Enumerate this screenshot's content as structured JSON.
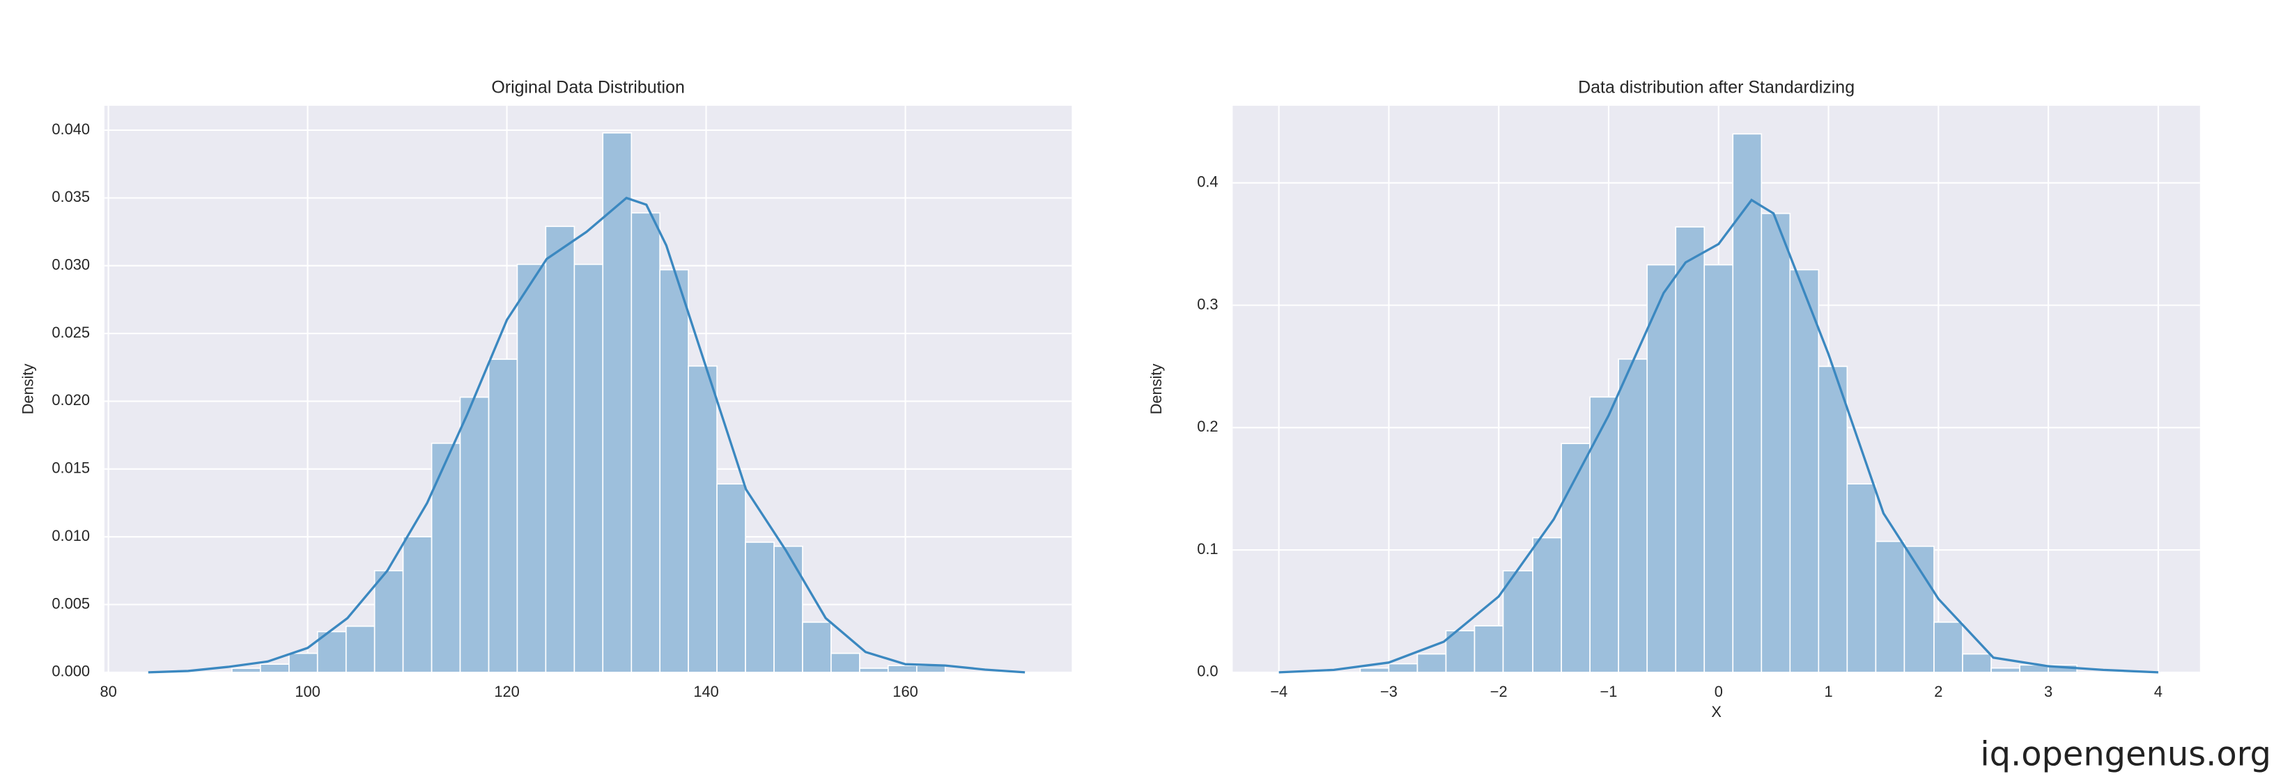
{
  "chart_data": [
    {
      "type": "histogram",
      "title": "Original Data Distribution",
      "ylabel": "Density",
      "bins": [
        92.4,
        95.26,
        98.13,
        100.99,
        103.86,
        106.72,
        109.58,
        112.45,
        115.31,
        118.18,
        121.04,
        123.9,
        126.77,
        129.63,
        132.5,
        135.36,
        138.22,
        141.09,
        143.95,
        146.82,
        149.68,
        152.54,
        155.41,
        158.27,
        161.14,
        164.0
      ],
      "values": [
        0.0003,
        0.0006,
        0.0014,
        0.003,
        0.0034,
        0.0075,
        0.01,
        0.0169,
        0.0203,
        0.0231,
        0.0301,
        0.0329,
        0.0301,
        0.0398,
        0.0339,
        0.0297,
        0.0226,
        0.0139,
        0.0096,
        0.0093,
        0.0037,
        0.0014,
        0.0003,
        0.0005,
        0.0005
      ],
      "color": "#9dbfdc",
      "kde": {
        "color": "#3b88c0",
        "x": [
          84,
          88,
          92,
          96,
          100,
          104,
          108,
          112,
          116,
          120,
          124,
          128,
          132,
          134,
          136,
          140,
          144,
          148,
          152,
          156,
          160,
          164,
          168,
          172
        ],
        "values": [
          0,
          0.0001,
          0.0004,
          0.0008,
          0.0018,
          0.004,
          0.0075,
          0.0125,
          0.019,
          0.026,
          0.0305,
          0.0325,
          0.035,
          0.0345,
          0.0315,
          0.0225,
          0.0135,
          0.009,
          0.004,
          0.0015,
          0.0006,
          0.0005,
          0.0002,
          0
        ]
      },
      "xlim": [
        79.6,
        176.7
      ],
      "ylim": [
        0,
        0.0418
      ],
      "xticks": [
        80,
        100,
        120,
        140,
        160
      ],
      "yticks": [
        {
          "value": 0,
          "label": "0.000"
        },
        0.005,
        {
          "value": 0.01,
          "label": "0.010"
        },
        0.015,
        {
          "value": 0.02,
          "label": "0.020"
        },
        0.025,
        {
          "value": 0.03,
          "label": "0.030"
        },
        0.035,
        {
          "value": 0.04,
          "label": "0.040"
        }
      ],
      "grid": true
    },
    {
      "type": "histogram",
      "title": "Data distribution after Standardizing",
      "ylabel": "Density",
      "xlabel": "X",
      "bins": [
        -3.26,
        -3.0,
        -2.74,
        -2.48,
        -2.22,
        -1.96,
        -1.69,
        -1.43,
        -1.17,
        -0.91,
        -0.65,
        -0.39,
        -0.13,
        0.13,
        0.39,
        0.65,
        0.91,
        1.17,
        1.43,
        1.69,
        1.96,
        2.22,
        2.48,
        2.74,
        3.0,
        3.26
      ],
      "values": [
        0.0035,
        0.007,
        0.015,
        0.034,
        0.038,
        0.083,
        0.11,
        0.187,
        0.225,
        0.256,
        0.333,
        0.364,
        0.333,
        0.44,
        0.375,
        0.329,
        0.25,
        0.154,
        0.107,
        0.103,
        0.041,
        0.015,
        0.0035,
        0.006,
        0.006
      ],
      "color": "#9dbfdc",
      "kde": {
        "color": "#3b88c0",
        "x": [
          -4,
          -3.5,
          -3,
          -2.5,
          -2,
          -1.5,
          -1,
          -0.5,
          -0.3,
          0,
          0.3,
          0.5,
          1,
          1.5,
          2,
          2.5,
          3,
          3.5,
          4
        ],
        "values": [
          0,
          0.002,
          0.008,
          0.025,
          0.062,
          0.125,
          0.21,
          0.31,
          0.335,
          0.35,
          0.386,
          0.375,
          0.26,
          0.13,
          0.06,
          0.012,
          0.005,
          0.002,
          0
        ]
      },
      "xlim": [
        -4.42,
        4.38
      ],
      "ylim": [
        0,
        0.463
      ],
      "xticks": [
        {
          "value": -4,
          "label": "−4"
        },
        {
          "value": -3,
          "label": "−3"
        },
        {
          "value": -2,
          "label": "−2"
        },
        {
          "value": -1,
          "label": "−1"
        },
        0,
        1,
        2,
        3,
        4
      ],
      "yticks": [
        {
          "value": 0,
          "label": "0.0"
        },
        0.1,
        0.2,
        0.3,
        0.4
      ],
      "grid": true
    }
  ],
  "watermark": "iq.opengenus.org"
}
